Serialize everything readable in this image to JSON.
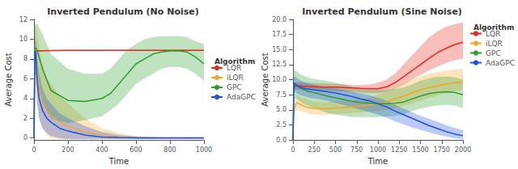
{
  "chart_data": [
    {
      "type": "line",
      "title": "Inverted Pendulum (No Noise)",
      "xlabel": "Time",
      "ylabel": "Average Cost",
      "xlim": [
        0,
        1000
      ],
      "ylim": [
        -0.2,
        12
      ],
      "xticks": [
        0,
        200,
        400,
        600,
        800,
        1000
      ],
      "yticks": [
        0,
        2,
        4,
        6,
        8,
        10,
        12
      ],
      "grid": false,
      "legend": "center right",
      "legend_title": "Algorithm",
      "series": [
        {
          "name": "LQR",
          "color": "#e8291c",
          "x": [
            0,
            5,
            10,
            15,
            20,
            30,
            50,
            100,
            200,
            400,
            600,
            800,
            1000
          ],
          "values": [
            8.6,
            8.7,
            8.75,
            8.8,
            8.8,
            8.82,
            8.83,
            8.85,
            8.87,
            8.88,
            8.88,
            8.88,
            8.88
          ],
          "std_low": [
            8.5,
            8.6,
            8.7,
            8.72,
            8.73,
            8.75,
            8.76,
            8.78,
            8.8,
            8.82,
            8.82,
            8.82,
            8.82
          ],
          "std_high": [
            8.72,
            8.82,
            8.82,
            8.85,
            8.87,
            8.87,
            8.88,
            8.9,
            8.92,
            8.93,
            8.93,
            8.93,
            8.93
          ]
        },
        {
          "name": "iLQR",
          "color": "#f5a623",
          "x": [
            0,
            5,
            10,
            15,
            20,
            30,
            50,
            75,
            100,
            150,
            200,
            300,
            400,
            500,
            600,
            700,
            800,
            900,
            1000
          ],
          "values": [
            0.0,
            9.0,
            8.8,
            7.5,
            6.5,
            5.0,
            3.8,
            2.8,
            2.3,
            1.6,
            1.2,
            0.6,
            0.25,
            0.1,
            0.04,
            0.02,
            0.01,
            0.01,
            0.01
          ],
          "std_low": [
            0.0,
            6.5,
            5.5,
            4.0,
            3.0,
            2.0,
            1.0,
            0.3,
            0.0,
            -0.1,
            -0.1,
            -0.1,
            -0.1,
            -0.1,
            -0.1,
            -0.1,
            -0.1,
            -0.1,
            -0.1
          ],
          "std_high": [
            0.0,
            11.0,
            11.5,
            11.0,
            10.5,
            9.0,
            7.5,
            6.0,
            5.5,
            4.2,
            3.5,
            2.0,
            1.0,
            0.5,
            0.2,
            0.1,
            0.05,
            0.03,
            0.03
          ]
        },
        {
          "name": "GPC",
          "color": "#2ca02c",
          "x": [
            0,
            5,
            10,
            20,
            50,
            100,
            200,
            300,
            400,
            450,
            500,
            550,
            600,
            650,
            700,
            750,
            800,
            850,
            900,
            950,
            1000
          ],
          "values": [
            0.0,
            9.0,
            9.1,
            8.8,
            7.0,
            4.8,
            3.8,
            3.7,
            4.0,
            4.5,
            5.5,
            6.5,
            7.5,
            8.0,
            8.5,
            8.7,
            8.8,
            8.8,
            8.7,
            8.2,
            7.5
          ],
          "std_low": [
            0.0,
            6.5,
            6.5,
            5.5,
            3.5,
            2.0,
            1.5,
            1.8,
            2.2,
            2.8,
            3.5,
            4.5,
            5.5,
            6.0,
            6.5,
            7.0,
            7.2,
            7.2,
            7.0,
            6.5,
            5.8
          ],
          "std_high": [
            0.0,
            11.5,
            11.5,
            11.5,
            10.5,
            8.5,
            7.0,
            6.5,
            6.5,
            7.0,
            8.0,
            9.0,
            9.5,
            10.0,
            10.2,
            10.3,
            10.3,
            10.3,
            10.2,
            9.8,
            9.5
          ]
        },
        {
          "name": "AdaGPC",
          "color": "#1f4fe8",
          "x": [
            0,
            5,
            10,
            15,
            20,
            30,
            50,
            75,
            100,
            150,
            200,
            300,
            400,
            500,
            600,
            700,
            800,
            900,
            1000
          ],
          "values": [
            0.0,
            8.8,
            8.7,
            7.0,
            5.5,
            4.0,
            2.8,
            2.0,
            1.6,
            1.0,
            0.7,
            0.3,
            0.1,
            0.05,
            0.02,
            0.01,
            0.01,
            0.01,
            0.01
          ],
          "std_low": [
            0.0,
            7.5,
            7.0,
            5.0,
            3.5,
            2.0,
            1.0,
            0.5,
            0.2,
            0.0,
            -0.1,
            -0.1,
            -0.1,
            -0.1,
            -0.1,
            -0.1,
            -0.1,
            -0.1,
            -0.1
          ],
          "std_high": [
            0.0,
            9.8,
            10.0,
            9.0,
            8.0,
            6.5,
            5.0,
            4.0,
            3.5,
            2.5,
            2.0,
            1.2,
            0.6,
            0.3,
            0.15,
            0.08,
            0.05,
            0.03,
            0.03
          ]
        }
      ]
    },
    {
      "type": "line",
      "title": "Inverted Pendulum (Sine Noise)",
      "xlabel": "Time",
      "ylabel": "Average Cost",
      "xlim": [
        0,
        2000
      ],
      "ylim": [
        0,
        20
      ],
      "xticks": [
        0,
        250,
        500,
        750,
        1000,
        1250,
        1500,
        1750,
        2000
      ],
      "yticks": [
        {
          "value": 0,
          "label": "0.0"
        },
        2.5,
        {
          "value": 5,
          "label": "5.0"
        },
        7.5,
        {
          "value": 10,
          "label": "10.0"
        },
        12.5,
        {
          "value": 15,
          "label": "15.0"
        },
        17.5,
        {
          "value": 20,
          "label": "20.0"
        }
      ],
      "grid": false,
      "legend": "upper left",
      "legend_title": "Algorithm",
      "series": [
        {
          "name": "LQR",
          "color": "#e8291c",
          "x": [
            0,
            25,
            50,
            75,
            100,
            150,
            200,
            300,
            400,
            500,
            600,
            700,
            800,
            900,
            1000,
            1100,
            1200,
            1300,
            1400,
            1500,
            1600,
            1700,
            1800,
            1900,
            2000
          ],
          "values": [
            8.5,
            8.9,
            9.0,
            9.0,
            8.95,
            8.9,
            8.85,
            8.8,
            8.78,
            8.75,
            8.7,
            8.62,
            8.55,
            8.5,
            8.5,
            8.8,
            9.5,
            10.5,
            11.5,
            12.5,
            13.5,
            14.5,
            15.2,
            15.8,
            16.2
          ],
          "std_low": [
            7.8,
            8.3,
            8.4,
            8.4,
            8.35,
            8.3,
            8.25,
            8.2,
            8.15,
            8.1,
            8.05,
            7.98,
            7.9,
            7.8,
            7.8,
            8.0,
            8.5,
            9.2,
            10.0,
            10.8,
            11.5,
            12.2,
            12.8,
            13.2,
            13.5
          ],
          "std_high": [
            9.2,
            9.5,
            9.6,
            9.6,
            9.55,
            9.5,
            9.45,
            9.4,
            9.35,
            9.3,
            9.25,
            9.15,
            9.1,
            9.2,
            9.5,
            10.0,
            11.0,
            12.5,
            14.0,
            15.5,
            17.0,
            18.0,
            18.8,
            19.2,
            19.5
          ]
        },
        {
          "name": "iLQR",
          "color": "#f5a623",
          "x": [
            0,
            10,
            25,
            50,
            75,
            100,
            150,
            200,
            300,
            400,
            500,
            600,
            700,
            800,
            900,
            1000,
            1100,
            1200,
            1300,
            1400,
            1500,
            1600,
            1700,
            1800,
            1900,
            2000
          ],
          "values": [
            0.0,
            4.5,
            5.8,
            6.2,
            6.0,
            5.8,
            5.5,
            5.3,
            5.2,
            5.2,
            5.3,
            5.4,
            5.5,
            5.6,
            5.8,
            6.0,
            6.3,
            6.8,
            7.3,
            7.8,
            8.3,
            8.7,
            9.0,
            9.3,
            9.5,
            9.6
          ],
          "std_low": [
            0.0,
            3.5,
            4.5,
            5.0,
            4.8,
            4.7,
            4.5,
            4.3,
            4.2,
            4.2,
            4.3,
            4.4,
            4.5,
            4.6,
            4.7,
            4.8,
            5.0,
            5.3,
            5.7,
            6.0,
            6.5,
            7.0,
            7.4,
            7.8,
            8.1,
            8.3
          ],
          "std_high": [
            0.0,
            5.5,
            7.0,
            7.5,
            7.2,
            7.0,
            6.8,
            6.5,
            6.3,
            6.3,
            6.4,
            6.5,
            6.6,
            6.8,
            7.0,
            7.5,
            8.0,
            8.8,
            9.5,
            10.0,
            10.5,
            11.0,
            11.2,
            11.5,
            11.7,
            11.8
          ]
        },
        {
          "name": "GPC",
          "color": "#2ca02c",
          "x": [
            0,
            10,
            25,
            50,
            75,
            100,
            150,
            200,
            300,
            400,
            500,
            600,
            700,
            800,
            900,
            1000,
            1100,
            1200,
            1300,
            1400,
            1500,
            1600,
            1700,
            1800,
            1900,
            2000
          ],
          "values": [
            0.0,
            9.0,
            9.2,
            9.0,
            8.7,
            8.5,
            8.2,
            8.0,
            7.7,
            7.3,
            7.0,
            6.7,
            6.4,
            6.2,
            6.1,
            6.0,
            6.0,
            6.1,
            6.3,
            6.8,
            7.3,
            7.7,
            7.9,
            8.0,
            7.9,
            7.5
          ],
          "std_low": [
            0.0,
            6.5,
            7.0,
            6.8,
            6.5,
            6.2,
            5.8,
            5.5,
            5.0,
            4.5,
            4.2,
            4.0,
            3.8,
            3.8,
            3.8,
            3.8,
            3.9,
            4.0,
            4.2,
            4.8,
            5.2,
            5.5,
            5.7,
            5.8,
            5.7,
            5.3
          ],
          "std_high": [
            0.0,
            11.5,
            11.5,
            11.3,
            11.0,
            10.8,
            10.5,
            10.2,
            10.0,
            9.8,
            9.5,
            9.2,
            8.8,
            8.5,
            8.3,
            8.3,
            8.3,
            8.5,
            8.7,
            9.2,
            9.8,
            10.2,
            10.5,
            10.5,
            10.4,
            10.0
          ]
        },
        {
          "name": "AdaGPC",
          "color": "#1f4fe8",
          "x": [
            0,
            10,
            25,
            50,
            75,
            100,
            150,
            200,
            300,
            400,
            500,
            600,
            700,
            800,
            900,
            1000,
            1100,
            1200,
            1300,
            1400,
            1500,
            1600,
            1700,
            1800,
            1900,
            2000
          ],
          "values": [
            0.0,
            9.5,
            9.3,
            9.0,
            8.8,
            8.7,
            8.5,
            8.4,
            8.2,
            8.0,
            7.8,
            7.5,
            7.2,
            6.8,
            6.5,
            6.0,
            5.5,
            4.8,
            4.2,
            3.6,
            3.0,
            2.4,
            1.9,
            1.4,
            1.0,
            0.7
          ],
          "std_low": [
            0.0,
            8.2,
            8.0,
            7.7,
            7.5,
            7.4,
            7.2,
            7.0,
            6.8,
            6.5,
            6.2,
            5.8,
            5.4,
            5.0,
            4.6,
            4.2,
            3.7,
            3.1,
            2.6,
            2.1,
            1.7,
            1.3,
            0.9,
            0.6,
            0.3,
            0.1
          ],
          "std_high": [
            0.0,
            10.5,
            10.5,
            10.2,
            10.0,
            9.8,
            9.5,
            9.3,
            9.0,
            8.8,
            8.6,
            8.3,
            8.0,
            7.7,
            7.4,
            7.0,
            6.5,
            5.8,
            5.2,
            4.6,
            4.0,
            3.5,
            3.0,
            2.5,
            2.0,
            1.6
          ]
        }
      ]
    }
  ]
}
